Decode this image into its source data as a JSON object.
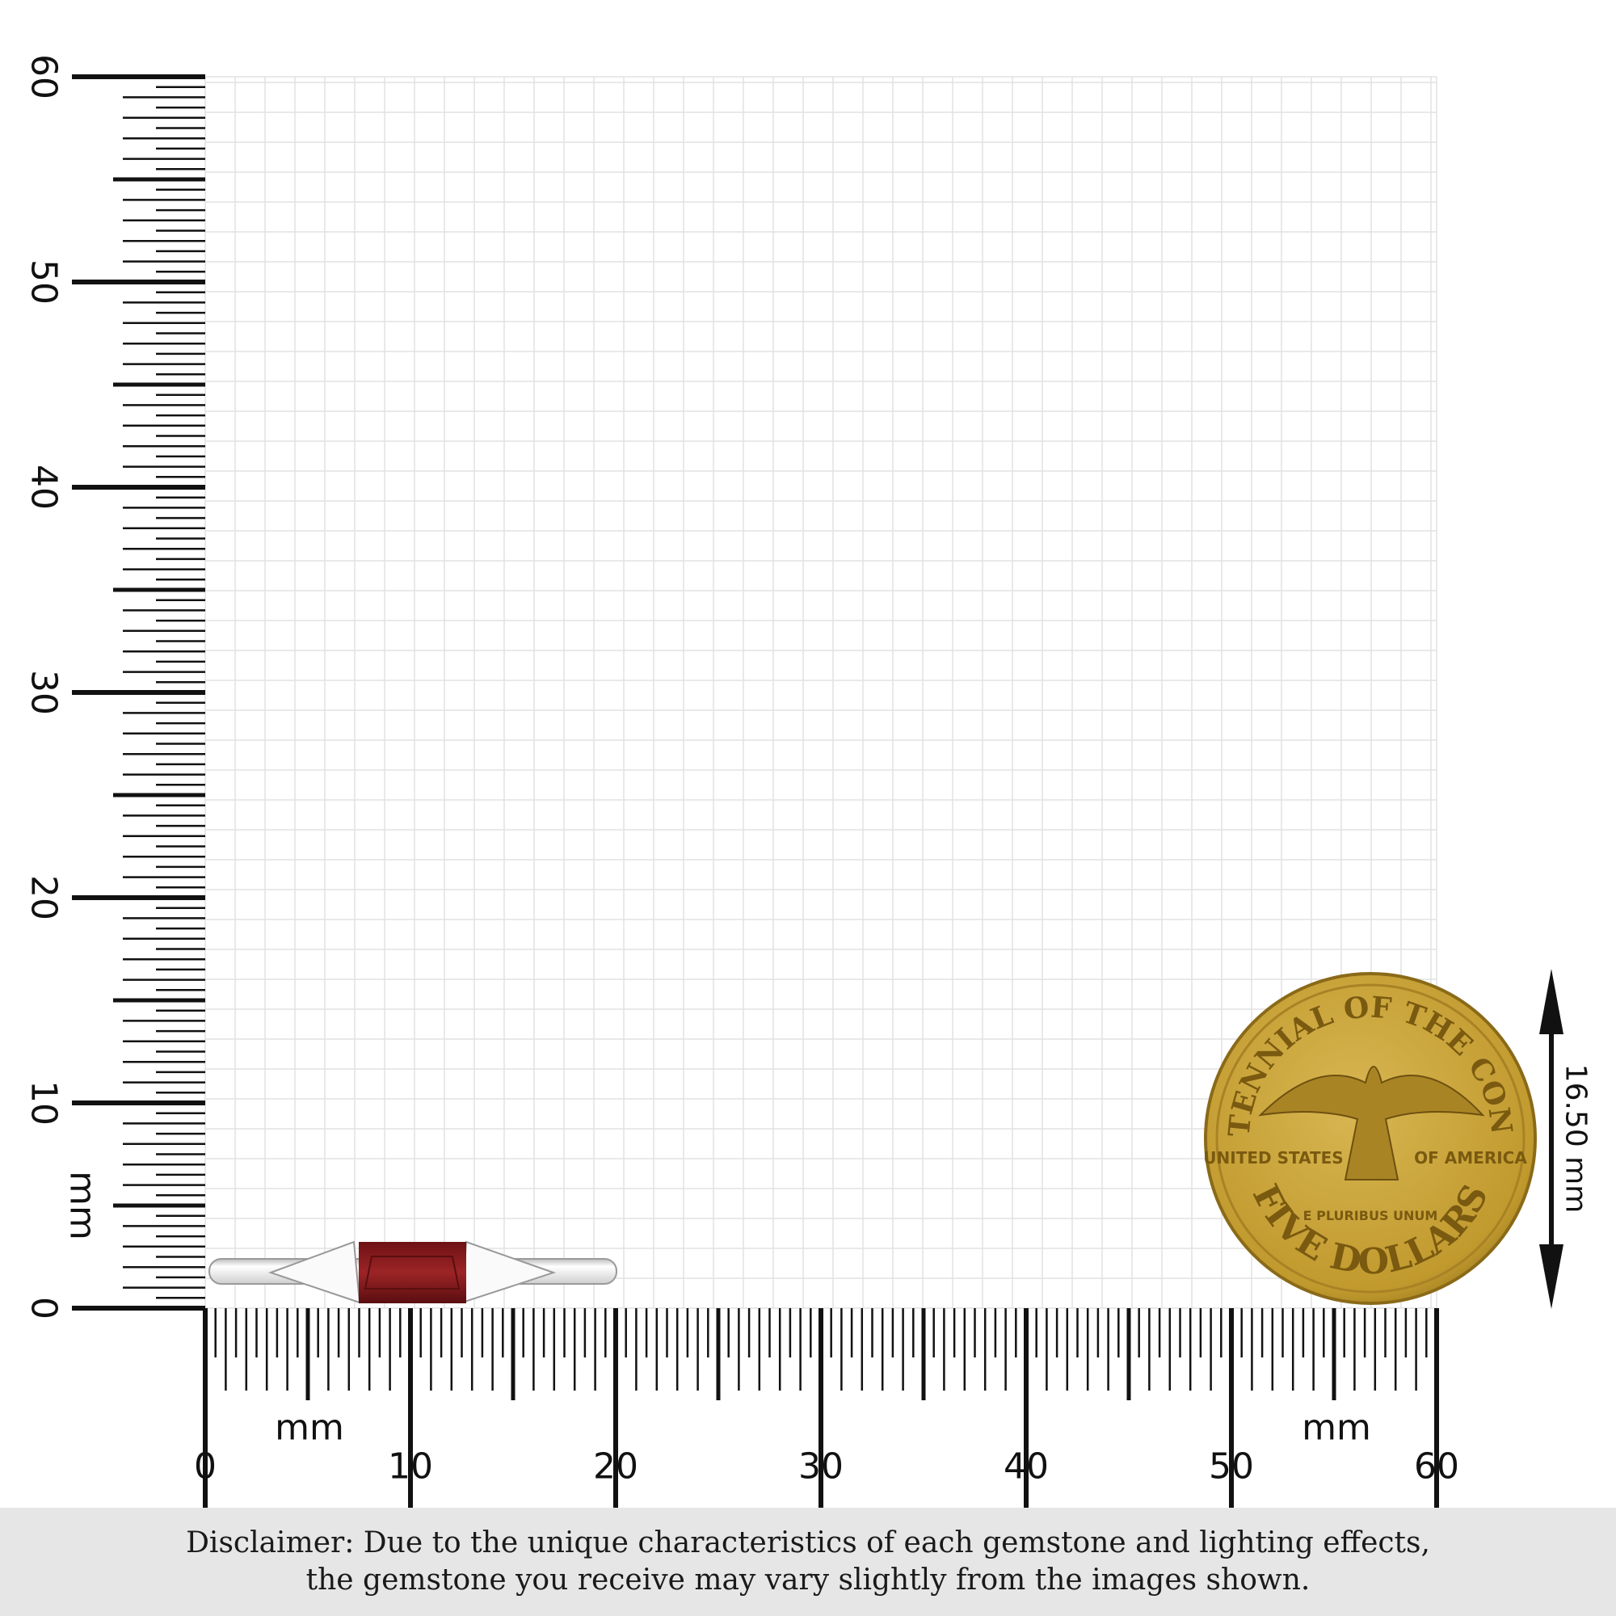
{
  "ruler": {
    "unit": "mm",
    "range_mm": [
      0,
      60
    ],
    "x_labels": [
      "0",
      "10",
      "20",
      "30",
      "40",
      "50",
      "60"
    ],
    "y_labels": [
      "0",
      "10",
      "20",
      "30",
      "40",
      "50",
      "60"
    ],
    "x_unit_labels": [
      "mm",
      "mm"
    ],
    "y_unit_label": "mm"
  },
  "product": {
    "type": "ring",
    "gem_color": "#8e1c1f",
    "metal_color": "#e8e8e8"
  },
  "coin": {
    "text_top": "BICENTENNIAL OF THE CONGRESS",
    "text_left": "UNITED STATES",
    "text_right": "OF AMERICA",
    "motto": "E PLURIBUS UNUM",
    "denomination": "FIVE DOLLARS",
    "color": "#c9a53a"
  },
  "measurement": {
    "label": "16.50 mm"
  },
  "disclaimer": {
    "line1": "Disclaimer: Due to the unique characteristics of each gemstone and lighting effects,",
    "line2": "the gemstone you receive may vary slightly from the images shown."
  }
}
